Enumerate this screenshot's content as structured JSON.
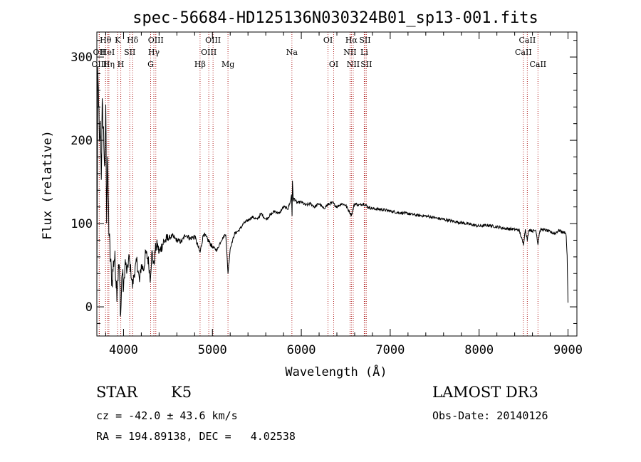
{
  "chart_data": {
    "type": "line",
    "title": "spec-56684-HD125136N030324B01_sp13-001.fits",
    "xlabel": "Wavelength (Å)",
    "ylabel": "Flux (relative)",
    "xlim": [
      3700,
      9100
    ],
    "ylim": [
      -35,
      330
    ],
    "xticks": [
      4000,
      5000,
      6000,
      7000,
      8000,
      9000
    ],
    "yticks": [
      0,
      100,
      200,
      300
    ],
    "grid": false,
    "series": [
      {
        "name": "flux",
        "color": "#000000",
        "x": [
          3700,
          3710,
          3720,
          3730,
          3740,
          3750,
          3760,
          3775,
          3790,
          3800,
          3810,
          3820,
          3835,
          3850,
          3870,
          3890,
          3900,
          3910,
          3925,
          3935,
          3950,
          3968,
          3985,
          4000,
          4020,
          4040,
          4060,
          4080,
          4101,
          4120,
          4150,
          4180,
          4200,
          4226,
          4250,
          4280,
          4300,
          4320,
          4340,
          4360,
          4380,
          4400,
          4450,
          4500,
          4550,
          4600,
          4650,
          4700,
          4750,
          4800,
          4861,
          4900,
          4950,
          5000,
          5050,
          5100,
          5150,
          5175,
          5200,
          5250,
          5300,
          5350,
          5400,
          5450,
          5500,
          5550,
          5600,
          5650,
          5700,
          5750,
          5800,
          5850,
          5880,
          5890,
          5896,
          5900,
          5910,
          5920,
          5950,
          6000,
          6050,
          6100,
          6150,
          6200,
          6250,
          6300,
          6350,
          6400,
          6450,
          6500,
          6563,
          6600,
          6650,
          6700,
          6750,
          6800,
          6900,
          7000,
          7100,
          7200,
          7300,
          7400,
          7500,
          7600,
          7700,
          7800,
          7900,
          8000,
          8100,
          8200,
          8300,
          8400,
          8450,
          8498,
          8520,
          8542,
          8560,
          8600,
          8640,
          8662,
          8680,
          8700,
          8750,
          8800,
          8850,
          8900,
          8950,
          8970,
          8980,
          8990,
          9000
        ],
        "values": [
          20,
          275,
          250,
          190,
          215,
          160,
          240,
          210,
          160,
          245,
          110,
          180,
          95,
          60,
          30,
          55,
          60,
          45,
          20,
          35,
          50,
          -10,
          45,
          20,
          55,
          40,
          60,
          45,
          25,
          40,
          55,
          30,
          50,
          45,
          65,
          55,
          35,
          65,
          50,
          70,
          75,
          65,
          78,
          82,
          85,
          80,
          78,
          87,
          82,
          85,
          65,
          88,
          80,
          72,
          68,
          80,
          88,
          40,
          70,
          88,
          92,
          100,
          104,
          108,
          105,
          112,
          105,
          110,
          115,
          112,
          120,
          118,
          128,
          135,
          110,
          150,
          128,
          130,
          125,
          126,
          122,
          124,
          120,
          124,
          118,
          123,
          125,
          120,
          124,
          122,
          110,
          124,
          122,
          124,
          120,
          118,
          117,
          115,
          113,
          112,
          110,
          109,
          107,
          105,
          103,
          101,
          99,
          97,
          98,
          96,
          94,
          93,
          92,
          75,
          93,
          80,
          93,
          91,
          92,
          75,
          90,
          93,
          92,
          90,
          88,
          92,
          89,
          90,
          85,
          60,
          5
        ]
      }
    ],
    "spectral_lines": [
      {
        "label": "Hθ",
        "x": 3798,
        "row": 0
      },
      {
        "label": "OII",
        "x": 3727,
        "row": 1
      },
      {
        "label": "OIII",
        "x": 3727,
        "row": 2
      },
      {
        "label": "HeI",
        "x": 3820,
        "row": 1
      },
      {
        "label": "Hη",
        "x": 3835,
        "row": 2
      },
      {
        "label": "K",
        "x": 3934,
        "row": 0
      },
      {
        "label": "SII",
        "x": 4070,
        "row": 1
      },
      {
        "label": "H",
        "x": 3969,
        "row": 2
      },
      {
        "label": "Hδ",
        "x": 4102,
        "row": 0
      },
      {
        "label": "OIII",
        "x": 4363,
        "row": 0
      },
      {
        "label": "Hγ",
        "x": 4341,
        "row": 1
      },
      {
        "label": "G",
        "x": 4305,
        "row": 2
      },
      {
        "label": "OIII",
        "x": 5007,
        "row": 0
      },
      {
        "label": "OIII",
        "x": 4959,
        "row": 1
      },
      {
        "label": "Hβ",
        "x": 4861,
        "row": 2
      },
      {
        "label": "Mg",
        "x": 5175,
        "row": 2
      },
      {
        "label": "Na",
        "x": 5894,
        "row": 1
      },
      {
        "label": "OI",
        "x": 6300,
        "row": 0
      },
      {
        "label": "OI",
        "x": 6364,
        "row": 2
      },
      {
        "label": "Hα",
        "x": 6563,
        "row": 0
      },
      {
        "label": "NII",
        "x": 6548,
        "row": 1
      },
      {
        "label": "NII",
        "x": 6584,
        "row": 2
      },
      {
        "label": "SII",
        "x": 6716,
        "row": 0
      },
      {
        "label": "Li",
        "x": 6708,
        "row": 1
      },
      {
        "label": "SII",
        "x": 6731,
        "row": 2
      },
      {
        "label": "CaII",
        "x": 8542,
        "row": 0
      },
      {
        "label": "CaII",
        "x": 8498,
        "row": 1
      },
      {
        "label": "CaII",
        "x": 8662,
        "row": 2
      }
    ]
  },
  "info": {
    "object_class": "STAR",
    "subclass": "K5",
    "survey": "LAMOST DR3",
    "redshift": "cz = -42.0 ± 43.6 km/s",
    "obs_date": "Obs-Date: 20140126",
    "coords": "RA = 194.89138, DEC =   4.02538"
  }
}
